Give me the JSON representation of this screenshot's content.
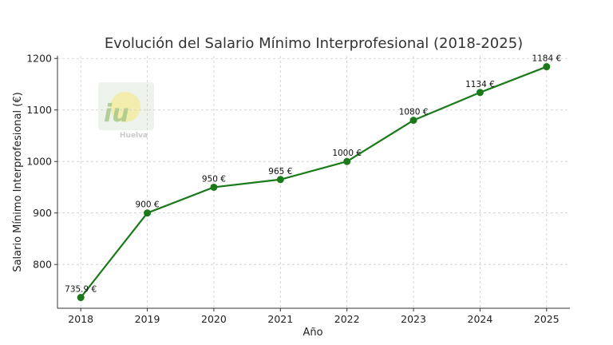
{
  "chart_data": {
    "type": "line",
    "title": "Evolución del Salario Mínimo Interprofesional (2018-2025)",
    "xlabel": "Año",
    "ylabel": "Salario Mínimo Interprofesional (€)",
    "x": [
      2018,
      2019,
      2020,
      2021,
      2022,
      2023,
      2024,
      2025
    ],
    "series": [
      {
        "values": [
          735.9,
          900,
          950,
          965,
          1000,
          1080,
          1134,
          1184
        ],
        "data_labels": [
          "735.9 €",
          "900 €",
          "950 €",
          "965 €",
          "1000 €",
          "1080 €",
          "1134 €",
          "1184 €"
        ]
      }
    ],
    "yticks": [
      800,
      900,
      1000,
      1100,
      1200
    ],
    "ylim": [
      715,
      1205
    ],
    "xlim": [
      2017.65,
      2025.35
    ],
    "grid": true,
    "line_color": "#1a7a1a",
    "grid_color": "#cccccc"
  },
  "watermark": {
    "logo_text": "iu",
    "subtext": "Huelva"
  }
}
